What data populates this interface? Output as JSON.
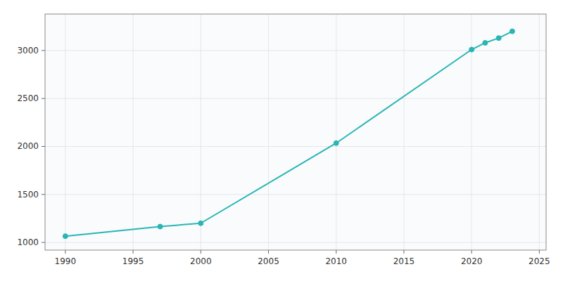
{
  "chart_data": {
    "type": "line",
    "x": [
      1990,
      1997,
      2000,
      2010,
      2020,
      2021,
      2022,
      2023
    ],
    "values": [
      1065,
      1165,
      1200,
      2035,
      3010,
      3080,
      3130,
      3200
    ],
    "color": "#2ab5b5",
    "marker": "circle",
    "xlim": [
      1988.5,
      2025.5
    ],
    "ylim": [
      920,
      3380
    ],
    "xticks": [
      1990,
      1995,
      2000,
      2005,
      2010,
      2015,
      2020,
      2025
    ],
    "yticks": [
      1000,
      1500,
      2000,
      2500,
      3000
    ],
    "grid": true
  }
}
